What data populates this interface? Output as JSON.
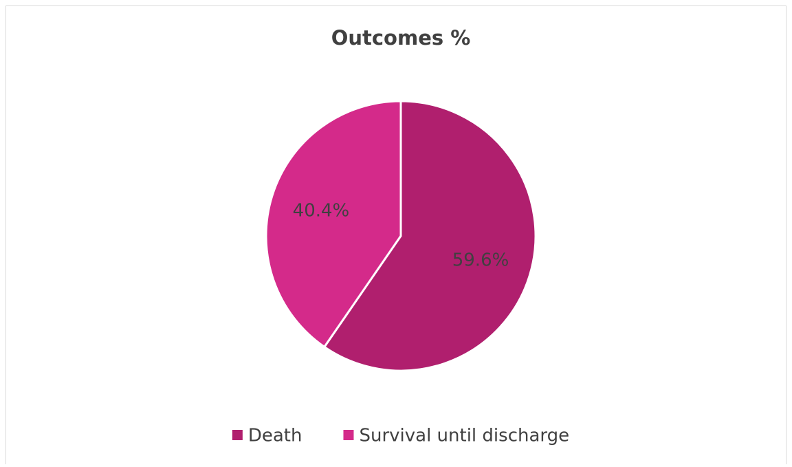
{
  "chart_data": {
    "type": "pie",
    "title": "Outcomes %",
    "categories": [
      "Death",
      "Survival until discharge"
    ],
    "values": [
      59.6,
      40.4
    ],
    "value_labels": [
      "59.6%",
      "40.4%"
    ],
    "colors": [
      "#b01f6e",
      "#d42a8a"
    ],
    "legend": "bottom"
  }
}
